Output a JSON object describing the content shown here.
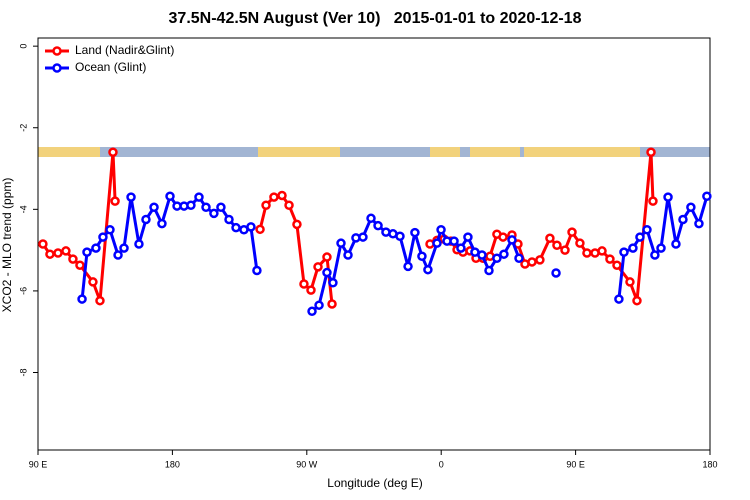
{
  "chart_data": {
    "type": "line",
    "title": "37.5N-42.5N August (Ver 10)   2015-01-01 to 2020-12-18",
    "x_label": "Longitude (deg E)",
    "y_label": "XCO2 - MLO trend (ppm)",
    "xlim": [
      90,
      540
    ],
    "ylim": [
      -9.9,
      0.2
    ],
    "xticks": [
      {
        "value": 90,
        "label": "90 E"
      },
      180,
      {
        "value": 270,
        "label": "90 W"
      },
      {
        "value": 360,
        "label": "0"
      },
      {
        "value": 450,
        "label": "90 E"
      },
      {
        "value": 540,
        "label": "180"
      }
    ],
    "yticks": [
      0,
      -2,
      -4,
      -6,
      -8
    ],
    "legend": "top-left",
    "series": [
      {
        "name": "Land (Nadir&Glint)",
        "color": "#ff0000",
        "x": [
          93.3,
          98.0,
          103.4,
          108.7,
          113.4,
          118.1,
          126.8,
          131.5,
          140.2,
          141.6,
          null,
          238.7,
          242.7,
          248.0,
          253.4,
          258.1,
          263.4,
          268.1,
          272.8,
          277.5,
          283.5,
          286.9,
          null,
          352.5,
          357.2,
          361.9,
          366.5,
          370.6,
          374.6,
          379.3,
          383.3,
          388.0,
          392.7,
          397.3,
          401.4,
          407.4,
          411.4,
          416.1,
          420.8,
          426.1,
          432.8,
          437.5,
          442.9,
          447.6,
          452.9,
          457.6,
          463.0,
          467.7,
          473.0,
          477.7,
          486.4,
          491.1,
          500.5,
          501.8
        ],
        "values": [
          -4.85,
          -5.1,
          -5.07,
          -5.02,
          -5.22,
          -5.37,
          -5.78,
          -6.24,
          -2.6,
          -3.8,
          null,
          -4.49,
          -3.9,
          -3.7,
          -3.66,
          -3.9,
          -4.37,
          -5.83,
          -5.98,
          -5.41,
          -5.17,
          -6.32,
          null,
          -4.85,
          -4.76,
          -4.73,
          -4.78,
          -4.99,
          -5.05,
          -5.02,
          -5.2,
          -5.2,
          -5.15,
          -4.61,
          -4.68,
          -4.63,
          -4.85,
          -5.34,
          -5.29,
          -5.24,
          -4.71,
          -4.88,
          -5.0,
          -4.56,
          -4.83,
          -5.07,
          -5.07,
          -5.02,
          -5.22,
          -5.37,
          -5.78,
          -6.24,
          -2.6,
          -3.8
        ]
      },
      {
        "name": "Ocean (Glint)",
        "color": "#0000ff",
        "x": [
          119.5,
          122.8,
          128.8,
          133.5,
          138.2,
          143.6,
          147.6,
          152.3,
          157.6,
          162.3,
          167.7,
          173.0,
          178.4,
          183.1,
          187.8,
          192.4,
          197.8,
          202.5,
          207.8,
          212.5,
          217.9,
          222.6,
          227.9,
          232.6,
          236.6,
          null,
          273.5,
          278.2,
          283.5,
          287.5,
          292.9,
          297.6,
          302.9,
          307.6,
          313.0,
          317.7,
          323.0,
          327.7,
          332.4,
          337.8,
          342.4,
          347.1,
          351.1,
          357.2,
          359.9,
          363.9,
          368.6,
          373.2,
          377.9,
          382.6,
          387.3,
          392.0,
          397.3,
          402.0,
          407.4,
          412.1,
          null,
          436.9,
          null,
          479.0,
          482.4,
          488.4,
          493.1,
          497.8,
          503.1,
          507.2,
          511.9,
          517.2,
          521.9,
          527.2,
          532.6,
          537.9
        ],
        "values": [
          -6.2,
          -5.05,
          -4.95,
          -4.68,
          -4.5,
          -5.12,
          -4.95,
          -3.7,
          -4.85,
          -4.25,
          -3.95,
          -4.35,
          -3.68,
          -3.92,
          -3.92,
          -3.9,
          -3.7,
          -3.95,
          -4.1,
          -3.95,
          -4.25,
          -4.45,
          -4.5,
          -4.43,
          -5.5,
          null,
          -6.5,
          -6.35,
          -5.55,
          -5.8,
          -4.83,
          -5.12,
          -4.7,
          -4.68,
          -4.22,
          -4.4,
          -4.56,
          -4.6,
          -4.66,
          -5.4,
          -4.57,
          -5.15,
          -5.48,
          -4.83,
          -4.5,
          -4.78,
          -4.78,
          -4.95,
          -4.68,
          -5.05,
          -5.12,
          -5.5,
          -5.2,
          -5.1,
          -4.75,
          -5.2,
          null,
          -5.56,
          null,
          -6.2,
          -5.05,
          -4.95,
          -4.68,
          -4.5,
          -5.12,
          -4.95,
          -3.7,
          -4.85,
          -4.25,
          -3.95,
          -4.35,
          -3.68
        ]
      }
    ]
  }
}
